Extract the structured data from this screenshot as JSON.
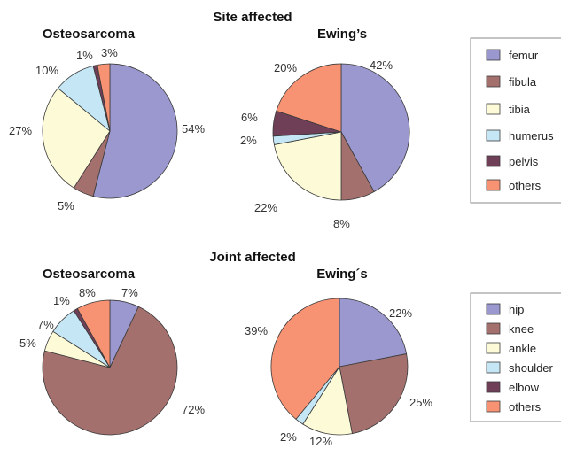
{
  "chart_data": [
    {
      "type": "pie",
      "section_title": "Site affected",
      "title": "Osteosarcoma",
      "categories": [
        "femur",
        "fibula",
        "tibia",
        "humerus",
        "pelvis",
        "others"
      ],
      "values": [
        54,
        5,
        27,
        10,
        1,
        3
      ],
      "labels": [
        "54%",
        "5%",
        "27%",
        "10%",
        "1%",
        "3%"
      ]
    },
    {
      "type": "pie",
      "title": "Ewing’s",
      "categories": [
        "femur",
        "fibula",
        "tibia",
        "humerus",
        "pelvis",
        "others"
      ],
      "values": [
        42,
        8,
        22,
        2,
        6,
        20
      ],
      "labels": [
        "42%",
        "8%",
        "22%",
        "2%",
        "6%",
        "20%"
      ]
    },
    {
      "type": "pie",
      "section_title": "Joint affected",
      "title": "Osteosarcoma",
      "categories": [
        "hip",
        "knee",
        "ankle",
        "shoulder",
        "elbow",
        "others"
      ],
      "values": [
        7,
        72,
        5,
        7,
        1,
        8
      ],
      "labels": [
        "7%",
        "72%",
        "5%",
        "7%",
        "1%",
        "8%"
      ]
    },
    {
      "type": "pie",
      "title": "Ewing´s",
      "categories": [
        "hip",
        "knee",
        "ankle",
        "shoulder",
        "elbow",
        "others"
      ],
      "values": [
        22,
        25,
        12,
        2,
        0,
        39
      ],
      "labels": [
        "22%",
        "25%",
        "12%",
        "2%",
        "",
        "39%"
      ]
    }
  ],
  "legends": {
    "site": [
      "femur",
      "fibula",
      "tibia",
      "humerus",
      "pelvis",
      "others"
    ],
    "joint": [
      "hip",
      "knee",
      "ankle",
      "shoulder",
      "elbow",
      "others"
    ]
  },
  "colors": [
    "#9b98cf",
    "#a3706d",
    "#fdfbd7",
    "#c5e7f5",
    "#6f3f58",
    "#f79272"
  ]
}
